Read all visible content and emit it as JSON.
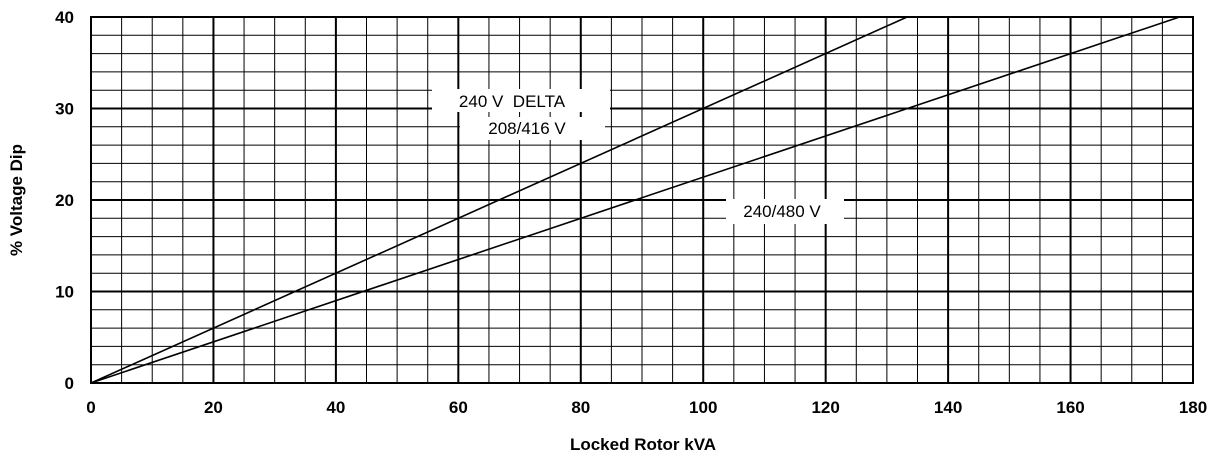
{
  "chart_data": {
    "type": "line",
    "title": "",
    "xlabel": "Locked Rotor kVA",
    "ylabel": "% Voltage Dip",
    "xlim": [
      0,
      180
    ],
    "ylim": [
      0,
      40
    ],
    "x_ticks": [
      "0",
      "20",
      "40",
      "60",
      "80",
      "100",
      "120",
      "140",
      "160",
      "180"
    ],
    "y_ticks": [
      "0",
      "10",
      "20",
      "30",
      "40"
    ],
    "grid": true,
    "series": [
      {
        "name": "240 V  DELTA",
        "name2": "208/416 V",
        "x": [
          0,
          133.3
        ],
        "y": [
          0,
          40
        ]
      },
      {
        "name": "240/480 V",
        "x": [
          0,
          177.8
        ],
        "y": [
          0,
          40
        ]
      }
    ],
    "line_color": "#000000"
  }
}
